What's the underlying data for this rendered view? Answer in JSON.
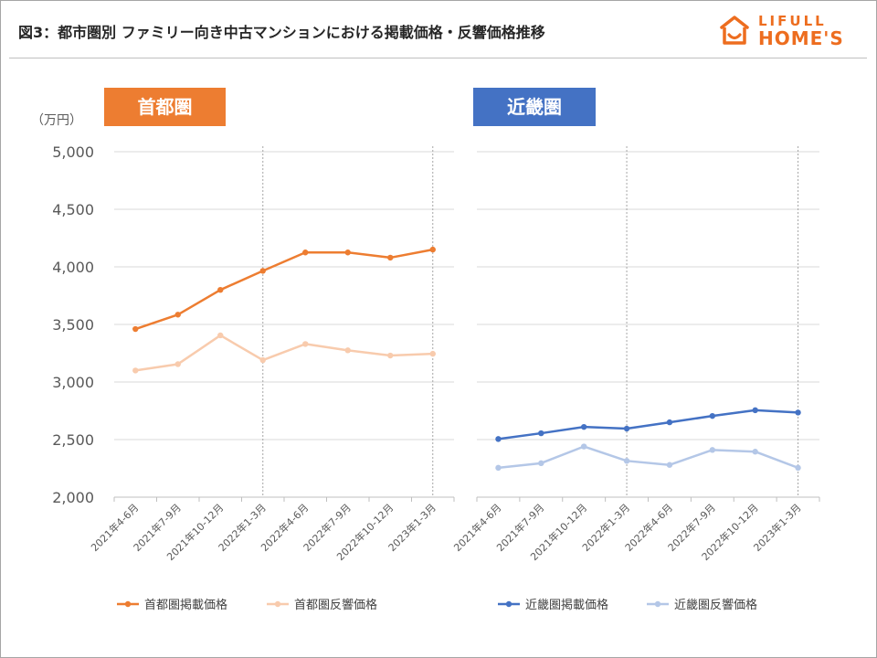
{
  "header": {
    "title": "図3：都市圏別 ファミリー向き中古マンションにおける掲載価格・反響価格推移",
    "logo_top": "LIFULL",
    "logo_bottom": "HOME'S"
  },
  "unit_label": "（万円）",
  "colors": {
    "shutoken_listing": "#ed7d31",
    "shutoken_response": "#f8cbad",
    "kinki_listing": "#4472c4",
    "kinki_response": "#b4c7e7",
    "logo": "#ed6d1f"
  },
  "chart_data": [
    {
      "type": "line",
      "panel_label": "首都圏",
      "categories": [
        "2021年4-6月",
        "2021年7-9月",
        "2021年10-12月",
        "2022年1-3月",
        "2022年4-6月",
        "2022年7-9月",
        "2022年10-12月",
        "2023年1-3月"
      ],
      "series": [
        {
          "name": "首都圏掲載価格",
          "values": [
            3460,
            3585,
            3800,
            3965,
            4125,
            4125,
            4080,
            4150
          ]
        },
        {
          "name": "首都圏反響価格",
          "values": [
            3100,
            3155,
            3405,
            3190,
            3330,
            3275,
            3230,
            3245
          ]
        }
      ],
      "ylim": [
        2000,
        5000
      ],
      "yticks": [
        "2,000",
        "2,500",
        "3,000",
        "3,500",
        "4,000",
        "4,500",
        "5,000"
      ],
      "grid": true,
      "legend": "bottom"
    },
    {
      "type": "line",
      "panel_label": "近畿圏",
      "categories": [
        "2021年4-6月",
        "2021年7-9月",
        "2021年10-12月",
        "2022年1-3月",
        "2022年4-6月",
        "2022年7-9月",
        "2022年10-12月",
        "2023年1-3月"
      ],
      "series": [
        {
          "name": "近畿圏掲載価格",
          "values": [
            2505,
            2555,
            2610,
            2595,
            2650,
            2705,
            2755,
            2735
          ]
        },
        {
          "name": "近畿圏反響価格",
          "values": [
            2255,
            2295,
            2440,
            2315,
            2280,
            2410,
            2395,
            2255
          ]
        }
      ],
      "ylim": [
        2000,
        5000
      ],
      "grid": true,
      "legend": "bottom"
    }
  ]
}
